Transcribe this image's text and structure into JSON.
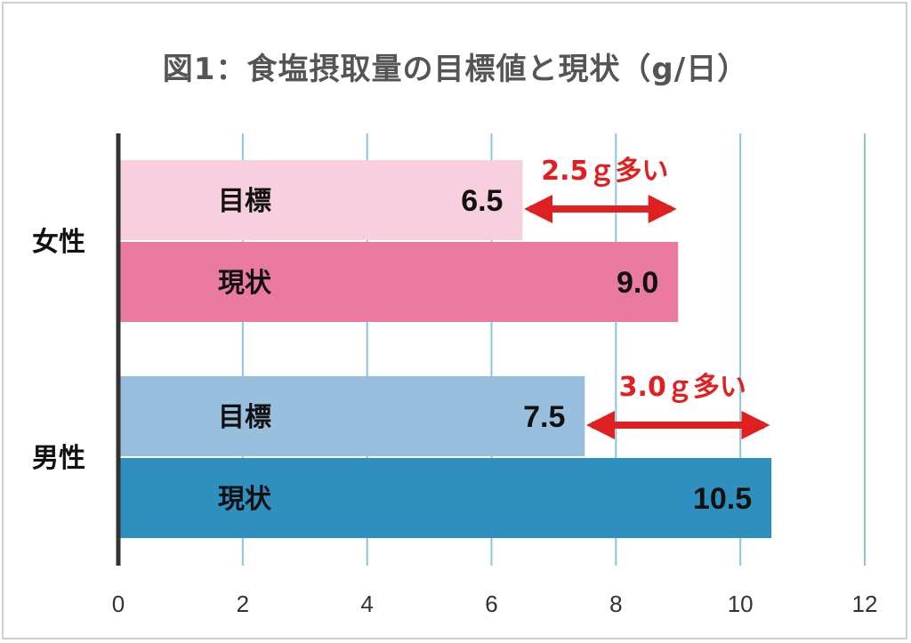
{
  "chart_data": {
    "type": "bar",
    "orientation": "horizontal",
    "title": "図1：食塩摂取量の目標値と現状（g/日）",
    "categories": [
      "女性",
      "男性"
    ],
    "series": [
      {
        "name": "目標",
        "values": [
          6.5,
          7.5
        ],
        "colors": [
          "#f7cfdf",
          "#99bfdf"
        ]
      },
      {
        "name": "現状",
        "values": [
          9.0,
          10.5
        ],
        "colors": [
          "#eb7aa0",
          "#2f8fbe"
        ]
      }
    ],
    "value_labels": {
      "目標": [
        "6.5",
        "7.5"
      ],
      "現状": [
        "9.0",
        "10.5"
      ]
    },
    "annotations": [
      "2.5ｇ多い",
      "3.0ｇ多い"
    ],
    "xlim": [
      0,
      12
    ],
    "xticks": [
      "0",
      "2",
      "4",
      "6",
      "8",
      "10",
      "12"
    ],
    "grid": true,
    "colors": {
      "gridline": "#8cc3dd",
      "arrow": "#e02020",
      "axis": "#333333"
    }
  }
}
